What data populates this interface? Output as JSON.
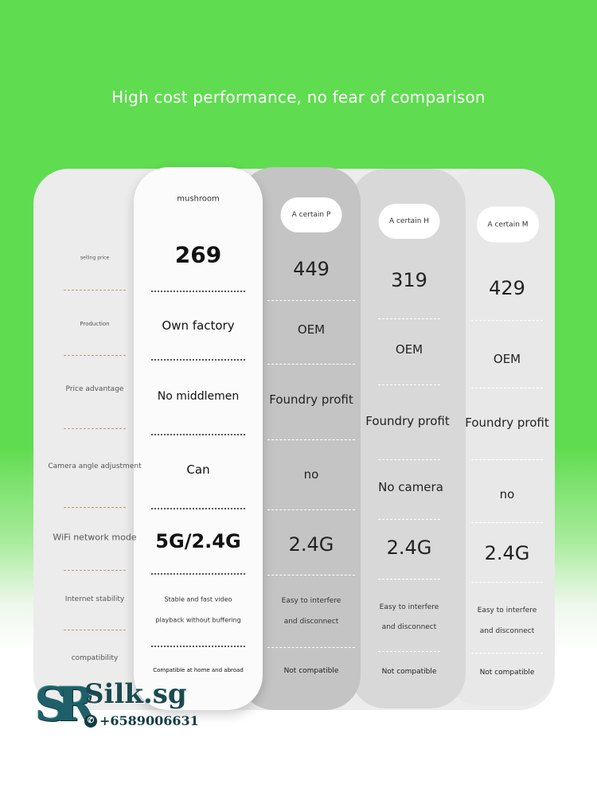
{
  "headline": "High cost performance, no fear of comparison",
  "labels": [
    "selling price",
    "Production",
    "Price advantage",
    "Camera angle adjustment",
    "WiFi network mode",
    "Internet stability",
    "compatibility"
  ],
  "columns": [
    {
      "name": "mushroom",
      "values": [
        "269",
        "Own factory",
        "No middlemen",
        "Can",
        "5G/2.4G",
        [
          "Stable and fast video",
          "playback without buffering"
        ],
        "Compatible at home and abroad"
      ]
    },
    {
      "name": "A certain P",
      "values": [
        "449",
        "OEM",
        "Foundry profit",
        "no",
        "2.4G",
        [
          "Easy to interfere",
          "and disconnect"
        ],
        "Not compatible"
      ]
    },
    {
      "name": "A certain H",
      "values": [
        "319",
        "OEM",
        "Foundry profit",
        "No camera",
        "2.4G",
        [
          "Easy to interfere",
          "and disconnect"
        ],
        "Not compatible"
      ]
    },
    {
      "name": "A certain M",
      "values": [
        "429",
        "OEM",
        "Foundry profit",
        "no",
        "2.4G",
        [
          "Easy to interfere",
          "and disconnect"
        ],
        "Not compatible"
      ]
    }
  ],
  "watermark": {
    "brand": "Silk.sg",
    "monogram": "SR",
    "phone": "+6589006631",
    "icon": "whatsapp-icon"
  }
}
